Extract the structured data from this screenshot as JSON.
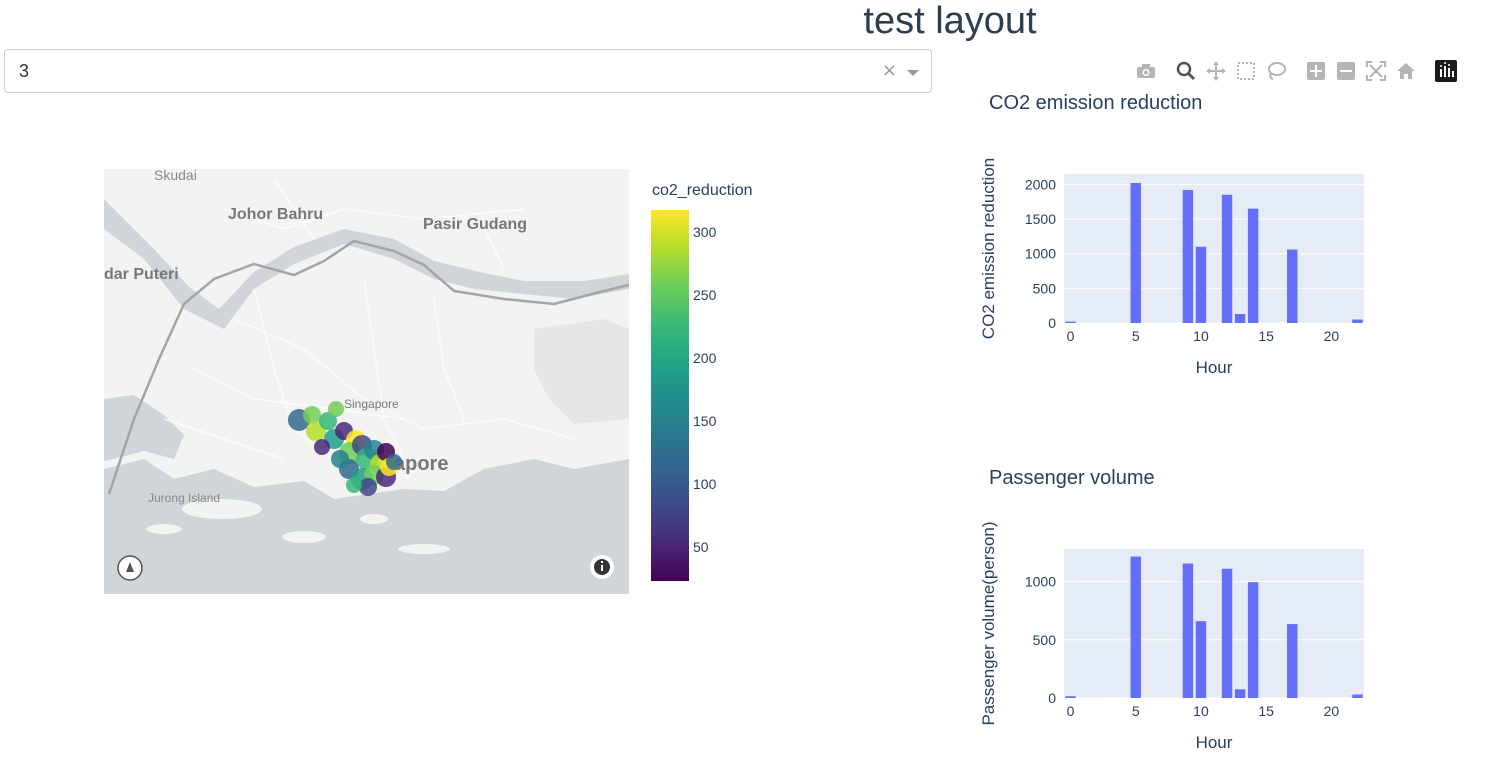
{
  "page": {
    "title": "test layout"
  },
  "dropdown": {
    "value": "3",
    "clear_symbol": "×"
  },
  "map": {
    "labels": [
      "Skudai",
      "Johor Bahru",
      "Pasir Gudang",
      "dar Puteri",
      "Singapore",
      "apore",
      "Jurong Island"
    ],
    "colorbar_title": "co2_reduction",
    "colorbar_ticks": [
      "300",
      "250",
      "200",
      "150",
      "100",
      "50"
    ],
    "colorscale": [
      "#440154",
      "#482878",
      "#3e4989",
      "#31688e",
      "#26828e",
      "#1f9e89",
      "#35b779",
      "#6ece58",
      "#b5de2b",
      "#fde725"
    ]
  },
  "modebar": {
    "icons": [
      "camera-icon",
      "zoom-icon",
      "pan-icon",
      "box-select-icon",
      "lasso-icon",
      "zoom-in-icon",
      "zoom-out-icon",
      "autoscale-icon",
      "reset-axes-icon",
      "plotly-logo-icon"
    ]
  },
  "chart_data": [
    {
      "type": "bar",
      "title": "CO2 emission reduction",
      "xlabel": "Hour",
      "ylabel": "CO2 emission reduction",
      "x": [
        0,
        5,
        9,
        10,
        12,
        13,
        14,
        17,
        22
      ],
      "values": [
        20,
        2020,
        1920,
        1100,
        1850,
        130,
        1650,
        1060,
        50
      ],
      "xlim": [
        -0.5,
        22.5
      ],
      "ylim": [
        0,
        2150
      ],
      "xticks": [
        "0",
        "5",
        "10",
        "15",
        "20"
      ],
      "yticks": [
        "0",
        "500",
        "1000",
        "1500",
        "2000"
      ],
      "bar_color": "#636efa",
      "bg_color": "#e5ecf6"
    },
    {
      "type": "bar",
      "title": "Passenger volume",
      "xlabel": "Hour",
      "ylabel": "Passenger volume(person)",
      "x": [
        0,
        5,
        9,
        10,
        12,
        13,
        14,
        17,
        22
      ],
      "values": [
        15,
        1215,
        1155,
        660,
        1110,
        75,
        995,
        635,
        30
      ],
      "xlim": [
        -0.5,
        22.5
      ],
      "ylim": [
        0,
        1280
      ],
      "xticks": [
        "0",
        "5",
        "10",
        "15",
        "20"
      ],
      "yticks": [
        "0",
        "500",
        "1000"
      ],
      "bar_color": "#636efa",
      "bg_color": "#e5ecf6"
    }
  ]
}
